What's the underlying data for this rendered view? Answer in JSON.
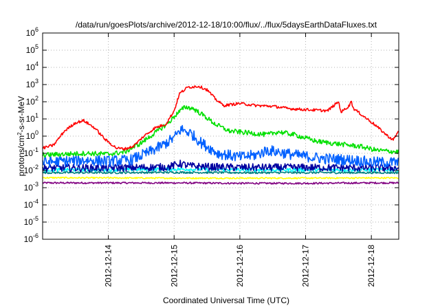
{
  "chart_data": {
    "type": "line",
    "title": "/data/run/goesPlots/archive/2012-12-18/10:00/flux/../flux/5daysEarthDataFluxes.txt",
    "xlabel": "Coordinated Universal Time (UTC)",
    "ylabel_base": "protons/cm",
    "ylabel_sup": "2",
    "ylabel_rest": "-s-sr-MeV",
    "y_scale": "log",
    "ylim": [
      1e-06,
      1000000
    ],
    "xlim": [
      "2012-12-13T00:00",
      "2012-12-18T10:00"
    ],
    "grid": true,
    "legend": "none",
    "y_ticks": [
      {
        "value": 1e-06,
        "base": "10",
        "exp": "-6"
      },
      {
        "value": 1e-05,
        "base": "10",
        "exp": "-5"
      },
      {
        "value": 0.0001,
        "base": "10",
        "exp": "-4"
      },
      {
        "value": 0.001,
        "base": "10",
        "exp": "-3"
      },
      {
        "value": 0.01,
        "base": "10",
        "exp": "-2"
      },
      {
        "value": 0.1,
        "base": "10",
        "exp": "-1"
      },
      {
        "value": 1,
        "base": "10",
        "exp": "0"
      },
      {
        "value": 10,
        "base": "10",
        "exp": "1"
      },
      {
        "value": 100,
        "base": "10",
        "exp": "2"
      },
      {
        "value": 1000,
        "base": "10",
        "exp": "3"
      },
      {
        "value": 10000,
        "base": "10",
        "exp": "4"
      },
      {
        "value": 100000,
        "base": "10",
        "exp": "5"
      },
      {
        "value": 1000000,
        "base": "10",
        "exp": "6"
      }
    ],
    "x_ticks": [
      {
        "value": "2012-12-14T00:00",
        "label": "2012-12-14"
      },
      {
        "value": "2012-12-15T00:00",
        "label": "2012-12-15"
      },
      {
        "value": "2012-12-16T00:00",
        "label": "2012-12-16"
      },
      {
        "value": "2012-12-17T00:00",
        "label": "2012-12-17"
      },
      {
        "value": "2012-12-18T00:00",
        "label": "2012-12-18"
      }
    ],
    "series": [
      {
        "color": "#800080",
        "noise": 0.05,
        "points": [
          [
            "2012-12-13T00:00",
            0.0019
          ],
          [
            "2012-12-14T00:00",
            0.0019
          ],
          [
            "2012-12-15T00:00",
            0.0019
          ],
          [
            "2012-12-16T00:00",
            0.0018
          ],
          [
            "2012-12-17T00:00",
            0.0018
          ],
          [
            "2012-12-18T00:00",
            0.0019
          ],
          [
            "2012-12-18T10:00",
            0.0019
          ]
        ]
      },
      {
        "color": "#ffff00",
        "noise": 0.04,
        "points": [
          [
            "2012-12-13T00:00",
            0.0038
          ],
          [
            "2012-12-14T00:00",
            0.0037
          ],
          [
            "2012-12-15T00:00",
            0.0036
          ],
          [
            "2012-12-16T00:00",
            0.0036
          ],
          [
            "2012-12-17T00:00",
            0.0036
          ],
          [
            "2012-12-18T00:00",
            0.0037
          ],
          [
            "2012-12-18T10:00",
            0.0037
          ]
        ]
      },
      {
        "color": "#008080",
        "noise": 0.06,
        "points": [
          [
            "2012-12-13T00:00",
            0.0075
          ],
          [
            "2012-12-14T00:00",
            0.0075
          ],
          [
            "2012-12-15T00:00",
            0.0078
          ],
          [
            "2012-12-16T00:00",
            0.0075
          ],
          [
            "2012-12-17T00:00",
            0.0075
          ],
          [
            "2012-12-18T00:00",
            0.0075
          ],
          [
            "2012-12-18T10:00",
            0.0075
          ]
        ]
      },
      {
        "color": "#00ffff",
        "noise": 0.1,
        "points": [
          [
            "2012-12-13T00:00",
            0.011
          ],
          [
            "2012-12-14T00:00",
            0.011
          ],
          [
            "2012-12-15T00:00",
            0.012
          ],
          [
            "2012-12-16T00:00",
            0.011
          ],
          [
            "2012-12-17T00:00",
            0.011
          ],
          [
            "2012-12-18T00:00",
            0.011
          ],
          [
            "2012-12-18T10:00",
            0.011
          ]
        ]
      },
      {
        "color": "#0000a0",
        "noise": 0.22,
        "points": [
          [
            "2012-12-13T00:00",
            0.014
          ],
          [
            "2012-12-14T00:00",
            0.014
          ],
          [
            "2012-12-14T22:00",
            0.016
          ],
          [
            "2012-12-15T02:00",
            0.025
          ],
          [
            "2012-12-15T06:00",
            0.018
          ],
          [
            "2012-12-15T14:00",
            0.016
          ],
          [
            "2012-12-16T00:00",
            0.015
          ],
          [
            "2012-12-17T00:00",
            0.015
          ],
          [
            "2012-12-18T00:00",
            0.014
          ],
          [
            "2012-12-18T10:00",
            0.014
          ]
        ]
      },
      {
        "color": "#0060ff",
        "noise": 0.32,
        "points": [
          [
            "2012-12-13T00:00",
            0.03
          ],
          [
            "2012-12-13T08:00",
            0.035
          ],
          [
            "2012-12-13T16:00",
            0.04
          ],
          [
            "2012-12-14T00:00",
            0.035
          ],
          [
            "2012-12-14T08:00",
            0.04
          ],
          [
            "2012-12-14T14:00",
            0.1
          ],
          [
            "2012-12-14T20:00",
            0.3
          ],
          [
            "2012-12-15T00:00",
            0.8
          ],
          [
            "2012-12-15T02:30",
            2.5
          ],
          [
            "2012-12-15T06:00",
            1.5
          ],
          [
            "2012-12-15T10:00",
            0.4
          ],
          [
            "2012-12-15T16:00",
            0.1
          ],
          [
            "2012-12-16T00:00",
            0.06
          ],
          [
            "2012-12-16T06:00",
            0.08
          ],
          [
            "2012-12-16T10:00",
            0.15
          ],
          [
            "2012-12-16T14:00",
            0.12
          ],
          [
            "2012-12-16T20:00",
            0.08
          ],
          [
            "2012-12-17T06:00",
            0.05
          ],
          [
            "2012-12-17T18:00",
            0.04
          ],
          [
            "2012-12-18T00:00",
            0.03
          ],
          [
            "2012-12-18T10:00",
            0.03
          ]
        ]
      },
      {
        "color": "#00e000",
        "noise": 0.14,
        "points": [
          [
            "2012-12-13T00:00",
            0.08
          ],
          [
            "2012-12-13T08:00",
            0.09
          ],
          [
            "2012-12-13T16:00",
            0.1
          ],
          [
            "2012-12-14T00:00",
            0.09
          ],
          [
            "2012-12-14T06:00",
            0.12
          ],
          [
            "2012-12-14T12:00",
            0.4
          ],
          [
            "2012-12-14T18:00",
            2.0
          ],
          [
            "2012-12-14T22:00",
            6.0
          ],
          [
            "2012-12-15T01:00",
            20
          ],
          [
            "2012-12-15T04:00",
            50
          ],
          [
            "2012-12-15T07:00",
            40
          ],
          [
            "2012-12-15T11:00",
            15
          ],
          [
            "2012-12-15T15:00",
            5
          ],
          [
            "2012-12-15T20:00",
            2.0
          ],
          [
            "2012-12-16T04:00",
            1.5
          ],
          [
            "2012-12-16T10:00",
            1.2
          ],
          [
            "2012-12-16T14:00",
            1.8
          ],
          [
            "2012-12-16T20:00",
            1.2
          ],
          [
            "2012-12-17T04:00",
            0.5
          ],
          [
            "2012-12-17T12:00",
            0.35
          ],
          [
            "2012-12-17T20:00",
            0.25
          ],
          [
            "2012-12-18T02:00",
            0.15
          ],
          [
            "2012-12-18T10:00",
            0.12
          ]
        ]
      },
      {
        "color": "#ff0000",
        "noise": 0.08,
        "points": [
          [
            "2012-12-13T00:00",
            0.2
          ],
          [
            "2012-12-13T04:00",
            0.3
          ],
          [
            "2012-12-13T08:00",
            2.0
          ],
          [
            "2012-12-13T12:00",
            6.0
          ],
          [
            "2012-12-13T15:00",
            8.0
          ],
          [
            "2012-12-13T19:00",
            3.0
          ],
          [
            "2012-12-13T23:00",
            0.6
          ],
          [
            "2012-12-14T03:00",
            0.2
          ],
          [
            "2012-12-14T06:00",
            0.18
          ],
          [
            "2012-12-14T09:00",
            0.25
          ],
          [
            "2012-12-14T13:00",
            1.0
          ],
          [
            "2012-12-14T17:00",
            3.0
          ],
          [
            "2012-12-14T21:00",
            5.0
          ],
          [
            "2012-12-15T00:00",
            30
          ],
          [
            "2012-12-15T02:00",
            300
          ],
          [
            "2012-12-15T05:00",
            700
          ],
          [
            "2012-12-15T09:00",
            800
          ],
          [
            "2012-12-15T12:00",
            500
          ],
          [
            "2012-12-15T15:00",
            150
          ],
          [
            "2012-12-15T18:00",
            60
          ],
          [
            "2012-12-16T00:00",
            80
          ],
          [
            "2012-12-16T06:00",
            60
          ],
          [
            "2012-12-16T12:00",
            55
          ],
          [
            "2012-12-16T18:00",
            40
          ],
          [
            "2012-12-17T00:00",
            35
          ],
          [
            "2012-12-17T08:00",
            30
          ],
          [
            "2012-12-17T12:00",
            100
          ],
          [
            "2012-12-17T13:00",
            25
          ],
          [
            "2012-12-17T16:00",
            60
          ],
          [
            "2012-12-17T16:30",
            120
          ],
          [
            "2012-12-17T17:30",
            40
          ],
          [
            "2012-12-17T21:00",
            15
          ],
          [
            "2012-12-18T01:00",
            5.0
          ],
          [
            "2012-12-18T06:00",
            1.0
          ],
          [
            "2012-12-18T08:00",
            0.6
          ],
          [
            "2012-12-18T10:00",
            2.0
          ]
        ]
      }
    ]
  }
}
